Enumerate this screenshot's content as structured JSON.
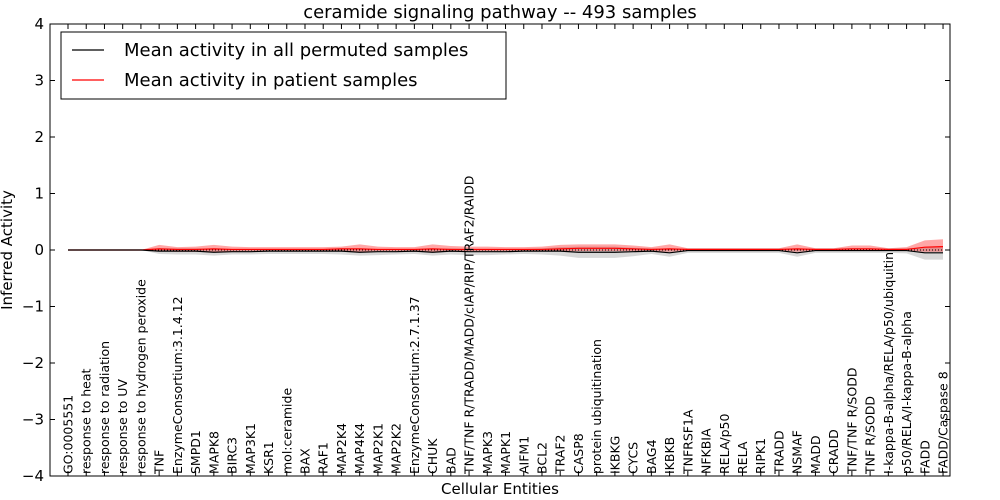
{
  "chart_data": {
    "type": "line",
    "title": "ceramide signaling pathway -- 493 samples",
    "xlabel": "Cellular Entities",
    "ylabel": "Inferred Activity",
    "ylim": [
      -4,
      4
    ],
    "yticks": [
      -4,
      -3,
      -2,
      -1,
      0,
      1,
      2,
      3,
      4
    ],
    "ytick_labels": [
      "−4",
      "−3",
      "−2",
      "−1",
      "0",
      "1",
      "2",
      "3",
      "4"
    ],
    "legend_position": "top-left",
    "categories": [
      "GO:0005551",
      "response to heat",
      "response to radiation",
      "response to UV",
      "response to hydrogen peroxide",
      "TNF",
      "EnzymeConsortium:3.1.4.12",
      "SMPD1",
      "MAPK8",
      "BIRC3",
      "MAP3K1",
      "KSR1",
      "mol:ceramide",
      "BAX",
      "RAF1",
      "MAP2K4",
      "MAP4K4",
      "MAP2K1",
      "MAP2K2",
      "EnzymeConsortium:2.7.1.37",
      "CHUK",
      "BAD",
      "TNF/TNF R/TRADD/MADD/cIAP/RIP/TRAF2/RAIDD",
      "MAPK3",
      "MAPK1",
      "AIFM1",
      "BCL2",
      "TRAF2",
      "CASP8",
      "protein ubiquitination",
      "IKBKG",
      "CYCS",
      "BAG4",
      "IKBKB",
      "TNFRSF1A",
      "NFKBIA",
      "RELA/p50",
      "RELA",
      "RIPK1",
      "TRADD",
      "NSMAF",
      "MADD",
      "CRADD",
      "TNF/TNF R/SODD",
      "TNF R/SODD",
      "I-kappa-B-alpha/RELA/p50/ubiquitin",
      "p50/RELA/I-kappa-B-alpha",
      "FADD",
      "FADD/Caspase 8"
    ],
    "series": [
      {
        "name": "Mean activity in all permuted samples",
        "color": "#000000",
        "values": [
          0,
          0,
          0,
          0,
          0,
          -0.02,
          -0.02,
          -0.02,
          -0.04,
          -0.03,
          -0.03,
          -0.02,
          -0.02,
          -0.02,
          -0.02,
          -0.02,
          -0.04,
          -0.03,
          -0.03,
          -0.02,
          -0.04,
          -0.02,
          -0.03,
          -0.03,
          -0.03,
          -0.02,
          -0.02,
          -0.02,
          -0.04,
          -0.04,
          -0.04,
          -0.03,
          -0.02,
          -0.05,
          -0.01,
          -0.01,
          -0.01,
          -0.01,
          -0.01,
          -0.01,
          -0.05,
          -0.01,
          -0.01,
          -0.01,
          -0.01,
          -0.01,
          -0.01,
          -0.05,
          -0.05
        ],
        "band_low": [
          0,
          0,
          0,
          0,
          0,
          -0.07,
          -0.08,
          -0.08,
          -0.1,
          -0.08,
          -0.08,
          -0.07,
          -0.07,
          -0.07,
          -0.07,
          -0.08,
          -0.1,
          -0.09,
          -0.08,
          -0.07,
          -0.1,
          -0.08,
          -0.09,
          -0.09,
          -0.08,
          -0.07,
          -0.08,
          -0.1,
          -0.14,
          -0.14,
          -0.14,
          -0.11,
          -0.07,
          -0.12,
          -0.05,
          -0.05,
          -0.05,
          -0.05,
          -0.05,
          -0.05,
          -0.12,
          -0.05,
          -0.05,
          -0.05,
          -0.05,
          -0.05,
          -0.06,
          -0.17,
          -0.17
        ],
        "band_high": [
          0,
          0,
          0,
          0,
          0,
          0.03,
          0.03,
          0.03,
          0.02,
          0.02,
          0.02,
          0.02,
          0.02,
          0.02,
          0.02,
          0.03,
          0.02,
          0.02,
          0.02,
          0.02,
          0.02,
          0.03,
          0.02,
          0.02,
          0.02,
          0.02,
          0.03,
          0.05,
          0.06,
          0.06,
          0.06,
          0.04,
          0.03,
          0.02,
          0.03,
          0.03,
          0.03,
          0.03,
          0.03,
          0.03,
          0.02,
          0.03,
          0.03,
          0.03,
          0.03,
          0.03,
          0.03,
          0.05,
          0.05
        ]
      },
      {
        "name": "Mean activity in patient samples",
        "color": "#ff0000",
        "values": [
          0,
          0,
          0,
          0,
          0,
          0.02,
          0.01,
          0.01,
          0.02,
          0.01,
          0.01,
          0.01,
          0.01,
          0.01,
          0.01,
          0.02,
          0.02,
          0.01,
          0.01,
          0.01,
          0.02,
          0.01,
          0.01,
          0.01,
          0.01,
          0.01,
          0.01,
          0.02,
          0.03,
          0.03,
          0.03,
          0.02,
          0.01,
          0.02,
          0.01,
          0.01,
          0.01,
          0.01,
          0.01,
          0.01,
          0.02,
          0.01,
          0.01,
          0.02,
          0.02,
          0.01,
          0.01,
          0.05,
          0.06
        ],
        "band_low": [
          0,
          0,
          0,
          0,
          0,
          -0.02,
          -0.03,
          -0.03,
          -0.04,
          -0.03,
          -0.02,
          -0.02,
          -0.02,
          -0.02,
          -0.02,
          -0.02,
          -0.03,
          -0.02,
          -0.02,
          -0.02,
          -0.03,
          -0.02,
          -0.02,
          -0.02,
          -0.02,
          -0.02,
          -0.02,
          -0.02,
          -0.02,
          -0.02,
          -0.02,
          -0.02,
          -0.02,
          -0.03,
          -0.01,
          -0.01,
          -0.01,
          -0.01,
          -0.01,
          -0.01,
          -0.03,
          -0.01,
          -0.01,
          -0.01,
          -0.01,
          -0.01,
          -0.01,
          -0.03,
          -0.03
        ],
        "band_high": [
          0,
          0,
          0,
          0,
          0,
          0.09,
          0.05,
          0.06,
          0.09,
          0.06,
          0.05,
          0.05,
          0.05,
          0.05,
          0.05,
          0.06,
          0.1,
          0.06,
          0.05,
          0.05,
          0.1,
          0.07,
          0.06,
          0.06,
          0.05,
          0.05,
          0.06,
          0.09,
          0.1,
          0.1,
          0.1,
          0.08,
          0.05,
          0.1,
          0.03,
          0.03,
          0.03,
          0.03,
          0.03,
          0.03,
          0.1,
          0.03,
          0.03,
          0.08,
          0.08,
          0.03,
          0.05,
          0.17,
          0.19
        ]
      }
    ]
  }
}
